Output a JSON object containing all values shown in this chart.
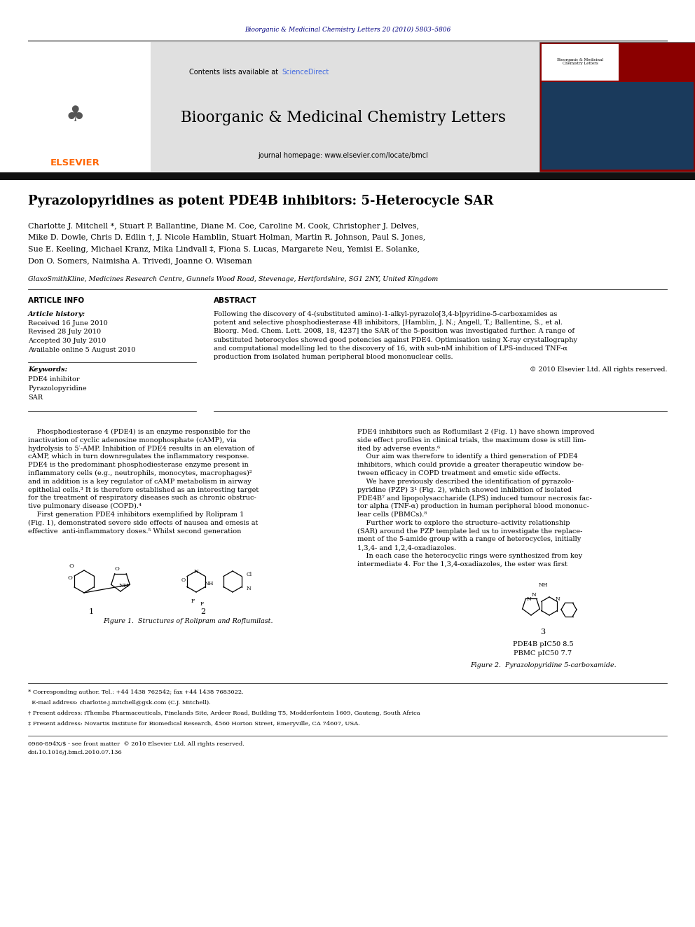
{
  "page_width": 9.92,
  "page_height": 13.23,
  "bg": "#ffffff",
  "journal_ref": "Bioorganic & Medicinal Chemistry Letters 20 (2010) 5803–5806",
  "journal_ref_color": "#000080",
  "header_bg": "#E0E0E0",
  "journal_name": "Bioorganic & Medicinal Chemistry Letters",
  "homepage": "journal homepage: www.elsevier.com/locate/bmcl",
  "contents_pre": "Contents lists available at ",
  "sciencedirect": "ScienceDirect",
  "sd_color": "#4169E1",
  "elsevier_color": "#FF6600",
  "title": "Pyrazolopyridines as potent PDE4B inhibitors: 5-Heterocycle SAR",
  "authors_line1": "Charlotte J. Mitchell *, Stuart P. Ballantine, Diane M. Coe, Caroline M. Cook, Christopher J. Delves,",
  "authors_line2": "Mike D. Dowle, Chris D. Edlin †, J. Nicole Hamblin, Stuart Holman, Martin R. Johnson, Paul S. Jones,",
  "authors_line3": "Sue E. Keeling, Michael Kranz, Mika Lindvall ‡, Fiona S. Lucas, Margarete Neu, Yemisi E. Solanke,",
  "authors_line4": "Don O. Somers, Naimisha A. Trivedi, Joanne O. Wiseman",
  "affiliation": "GlaxoSmithKline, Medicines Research Centre, Gunnels Wood Road, Stevenage, Hertfordshire, SG1 2NY, United Kingdom",
  "art_info_hdr": "ARTICLE INFO",
  "abstract_hdr": "ABSTRACT",
  "hist_hdr": "Article history:",
  "received": "Received 16 June 2010",
  "revised": "Revised 28 July 2010",
  "accepted": "Accepted 30 July 2010",
  "available": "Available online 5 August 2010",
  "kw_hdr": "Keywords:",
  "keywords": [
    "PDE4 inhibitor",
    "Pyrazolopyridine",
    "SAR"
  ],
  "abstract_line1": "Following the discovery of 4-(substituted amino)-1-alkyl-pyrazolo[3,4-b]pyridine-5-carboxamides as",
  "abstract_line2": "potent and selective phosphodiesterase 4B inhibitors, [Hamblin, J. N.; Angell, T.; Ballentine, S., et al.",
  "abstract_line3": "Bioorg. Med. Chem. Lett. 2008, 18, 4237] the SAR of the 5-position was investigated further. A range of",
  "abstract_line4": "substituted heterocycles showed good potencies against PDE4. Optimisation using X-ray crystallography",
  "abstract_line5": "and computational modelling led to the discovery of 16, with sub-nM inhibition of LPS-induced TNF-α",
  "abstract_line6": "production from isolated human peripheral blood mononuclear cells.",
  "copyright": "© 2010 Elsevier Ltd. All rights reserved.",
  "body_left_1": "    Phosphodiesterase 4 (PDE4) is an enzyme responsible for the",
  "body_left_2": "inactivation of cyclic adenosine monophosphate (cAMP), via",
  "body_left_3": "hydrolysis to 5′-AMP. Inhibition of PDE4 results in an elevation of",
  "body_left_4": "cAMP, which in turn downregulates the inflammatory response.",
  "body_left_5": "PDE4 is the predominant phosphodiesterase enzyme present in",
  "body_left_6": "inflammatory cells (e.g., neutrophils, monocytes, macrophages)²",
  "body_left_7": "and in addition is a key regulator of cAMP metabolism in airway",
  "body_left_8": "epithelial cells.³ It is therefore established as an interesting target",
  "body_left_9": "for the treatment of respiratory diseases such as chronic obstruc-",
  "body_left_10": "tive pulmonary disease (COPD).⁴",
  "body_left_11": "    First generation PDE4 inhibitors exemplified by Rolipram 1",
  "body_left_12": "(Fig. 1), demonstrated severe side effects of nausea and emesis at",
  "body_left_13": "effective  anti-inflammatory doses.⁵ Whilst second generation",
  "body_right_1": "PDE4 inhibitors such as Roflumilast 2 (Fig. 1) have shown improved",
  "body_right_2": "side effect profiles in clinical trials, the maximum dose is still lim-",
  "body_right_3": "ited by adverse events.⁶",
  "body_right_4": "    Our aim was therefore to identify a third generation of PDE4",
  "body_right_5": "inhibitors, which could provide a greater therapeutic window be-",
  "body_right_6": "tween efficacy in COPD treatment and emetic side effects.",
  "body_right_7": "    We have previously described the identification of pyrazolo-",
  "body_right_8": "pyridine (PZP) 3¹ (Fig. 2), which showed inhibition of isolated",
  "body_right_9": "PDE4B⁷ and lipopolysaccharide (LPS) induced tumour necrosis fac-",
  "body_right_10": "tor alpha (TNF-α) production in human peripheral blood mononuc-",
  "body_right_11": "lear cells (PBMCs).⁸",
  "body_right_12": "    Further work to explore the structure–activity relationship",
  "body_right_13": "(SAR) around the PZP template led us to investigate the replace-",
  "body_right_14": "ment of the 5-amide group with a range of heterocycles, initially",
  "body_right_15": "1,3,4- and 1,2,4-oxadiazoles.",
  "body_right_16": "    In each case the heterocyclic rings were synthesized from key",
  "body_right_17": "intermediate 4. For the 1,3,4-oxadiazoles, the ester was first",
  "fig1_cap": "Figure 1.  Structures of Rolipram and Roflumilast.",
  "fig2_cap": "Figure 2.  Pyrazolopyridine 5-carboxamide.",
  "cpd1_label": "1",
  "cpd2_label": "2",
  "cpd3_label": "3",
  "cpd3_data1": "PDE4B pIC50 8.5",
  "cpd3_data2": "PBMC pIC50 7.7",
  "fn1": "* Corresponding author. Tel.: +44 1438 762542; fax +44 1438 7683022.",
  "fn2": "  E-mail address: charlotte.j.mitchell@gsk.com (C.J. Mitchell).",
  "fn3": "† Present address: iThemba Pharmaceuticals, Pinelands Site, Ardeer Road, Building T5, Modderfontein 1609, Gauteng, South Africa",
  "fn4": "‡ Present address: Novartis Institute for Biomedical Research, 4560 Horton Street, Emeryville, CA 74607, USA.",
  "issn_line": "0960-894X/$ - see front matter  © 2010 Elsevier Ltd. All rights reserved.",
  "doi_line": "doi:10.1016/j.bmcl.2010.07.136"
}
